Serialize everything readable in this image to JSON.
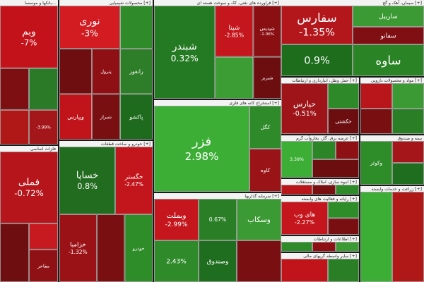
{
  "chart_data": {
    "type": "treemap",
    "sectors": [
      {
        "name": "بانکها و موسسا...",
        "tiles": [
          {
            "label": "وبم",
            "value": "-7%",
            "color": "#c4121a"
          },
          {
            "label": "",
            "value": "",
            "color": "#7d0f12"
          },
          {
            "label": "",
            "value": "",
            "color": "#2b7a27"
          },
          {
            "label": "",
            "value": "",
            "color": "#b01818"
          },
          {
            "label": "",
            "value": "-3.99%",
            "color": "#a3161a"
          }
        ]
      },
      {
        "name": "محصولات شیمیایی [+]",
        "tiles": [
          {
            "label": "نوری",
            "value": "-3%",
            "color": "#d21c22"
          },
          {
            "label": "",
            "value": "",
            "color": "#2f8a2a"
          },
          {
            "label": "",
            "value": "",
            "color": "#6e0e10"
          },
          {
            "label": "پترول",
            "value": "",
            "color": "#8e1014"
          },
          {
            "label": "رانفور",
            "value": "",
            "color": "#2e7d28"
          },
          {
            "label": "ویپارس",
            "value": "",
            "color": "#c0141a"
          },
          {
            "label": "شیراز",
            "value": "",
            "color": "#7a0f12"
          },
          {
            "label": "پاکشو",
            "value": "",
            "color": "#1f6b1e"
          }
        ]
      },
      {
        "name": "فراورده های نفتی، کک و سوخت هسته ای [+]",
        "tiles": [
          {
            "label": "شبندر",
            "value": "0.32%",
            "color": "#247a22"
          },
          {
            "label": "شپنا",
            "value": "-2.85%",
            "color": "#c4161c"
          },
          {
            "label": "شپدیس",
            "value": "-1.06%",
            "color": "#8a0f13"
          },
          {
            "label": "",
            "value": "",
            "color": "#3c9d34"
          },
          {
            "label": "شبریز",
            "value": "",
            "color": "#6c0d10"
          }
        ]
      },
      {
        "name": "سیمان، آهک و گچ [+]",
        "tiles": [
          {
            "label": "سفارس",
            "value": "-1.35%",
            "color": "#b3171c"
          },
          {
            "label": "ساربیل",
            "value": "",
            "color": "#3b9a33"
          },
          {
            "label": "سفانو",
            "value": "",
            "color": "#7f0f12"
          },
          {
            "label": "ساوه",
            "value": "",
            "color": "#2a8426"
          },
          {
            "label": "",
            "value": "0.9%",
            "color": "#1e6d1d"
          }
        ]
      },
      {
        "name": "استخراج کانه های فلزی [+]",
        "tiles": [
          {
            "label": "فزر",
            "value": "2.98%",
            "color": "#3cae35"
          },
          {
            "label": "کگل",
            "value": "",
            "color": "#2f8a2a"
          },
          {
            "label": "کاوه",
            "value": "",
            "color": "#9a1417"
          }
        ]
      },
      {
        "name": "فلزات اساسی",
        "tiles": [
          {
            "label": "فملی",
            "value": "-0.72%",
            "color": "#b5151b"
          },
          {
            "label": "",
            "value": "",
            "color": "#6e0e10"
          },
          {
            "label": "",
            "value": "",
            "color": "#c71a20"
          },
          {
            "label": "مفاخر",
            "value": "",
            "color": "#8f1115"
          }
        ]
      },
      {
        "name": "خودرو و ساخت قطعات [+]",
        "tiles": [
          {
            "label": "خساپا",
            "value": "0.8%",
            "color": "#226c20"
          },
          {
            "label": "خگستر",
            "value": "-2.47%",
            "color": "#c2161c"
          },
          {
            "label": "خزامیا",
            "value": "-1.32%",
            "color": "#9b1216"
          },
          {
            "label": "",
            "value": "",
            "color": "#7a0f12"
          },
          {
            "label": "خودرو",
            "value": "",
            "color": "#2e8c29"
          }
        ]
      },
      {
        "name": "حمل ونقل، انبارداری و ارتباطات [+]",
        "tiles": [
          {
            "label": "حپارس",
            "value": "-0.51%",
            "color": "#9e1418"
          },
          {
            "label": "",
            "value": "",
            "color": "#2e8a29"
          },
          {
            "label": "حکشتی",
            "value": "",
            "color": "#6c0d10"
          }
        ]
      },
      {
        "name": "مواد و محصولات دارویی [+]",
        "tiles": [
          {
            "label": "",
            "value": "",
            "color": "#b8161b"
          },
          {
            "label": "",
            "value": "",
            "color": "#3b9a33"
          },
          {
            "label": "",
            "value": "",
            "color": "#7a0f12"
          },
          {
            "label": "",
            "value": "",
            "color": "#2a7f26"
          }
        ]
      },
      {
        "name": "بیمه و صندوق",
        "tiles": [
          {
            "label": "وکوثر",
            "value": "",
            "color": "#2e8c29"
          },
          {
            "label": "",
            "value": "",
            "color": "#a5161a"
          },
          {
            "label": "",
            "value": "",
            "color": "#1f6d1e"
          }
        ]
      },
      {
        "name": "عرضه برق، گاز، بخاروآب گرم [+]",
        "tiles": [
          {
            "label": "",
            "value": "3.39%",
            "color": "#3cae35"
          },
          {
            "label": "",
            "value": "",
            "color": "#2c8627"
          },
          {
            "label": "",
            "value": "",
            "color": "#8e1014"
          },
          {
            "label": "",
            "value": "",
            "color": "#6c0d10"
          }
        ]
      },
      {
        "name": "انبوه سازی، املاک و مستغلات [+]",
        "tiles": [
          {
            "label": "",
            "value": "",
            "color": "#b8161b"
          },
          {
            "label": "",
            "value": "",
            "color": "#7a0f12"
          },
          {
            "label": "",
            "value": "",
            "color": "#2f8a2a"
          }
        ]
      },
      {
        "name": "سرمایه گذاریها [+]",
        "tiles": [
          {
            "label": "وبملت",
            "value": "-2.99%",
            "color": "#c4161c"
          },
          {
            "label": "",
            "value": "0.67%",
            "color": "#2a7f26"
          },
          {
            "label": "وسکاب",
            "value": "",
            "color": "#3b9a33"
          },
          {
            "label": "",
            "value": "2.43%",
            "color": "#2f8a2a"
          },
          {
            "label": "وصندوق",
            "value": "",
            "color": "#1f6d1e"
          },
          {
            "label": "",
            "value": "",
            "color": "#7a0f12"
          }
        ]
      },
      {
        "name": "رایانه و فعالیت های وابسته [+]",
        "tiles": [
          {
            "label": "های وب",
            "value": "-2.27%",
            "color": "#c4161c"
          },
          {
            "label": "",
            "value": "",
            "color": "#2e8c29"
          },
          {
            "label": "",
            "value": "",
            "color": "#7a0f12"
          }
        ]
      },
      {
        "name": "اطلاعات و ارتباطات [+]",
        "tiles": [
          {
            "label": "",
            "value": "",
            "color": "#2f8a2a"
          },
          {
            "label": "",
            "value": "",
            "color": "#8e1014"
          },
          {
            "label": "",
            "value": "",
            "color": "#3b9a33"
          }
        ]
      },
      {
        "name": "سایر واسطه گریهای مالی [+]",
        "tiles": [
          {
            "label": "",
            "value": "",
            "color": "#c0141a"
          },
          {
            "label": "",
            "value": "",
            "color": "#2a7f26"
          }
        ]
      },
      {
        "name": "زراعت و خدمات وابسته [+]",
        "tiles": [
          {
            "label": "",
            "value": "",
            "color": "#3cae35"
          },
          {
            "label": "",
            "value": "",
            "color": "#b01818"
          }
        ]
      }
    ]
  }
}
